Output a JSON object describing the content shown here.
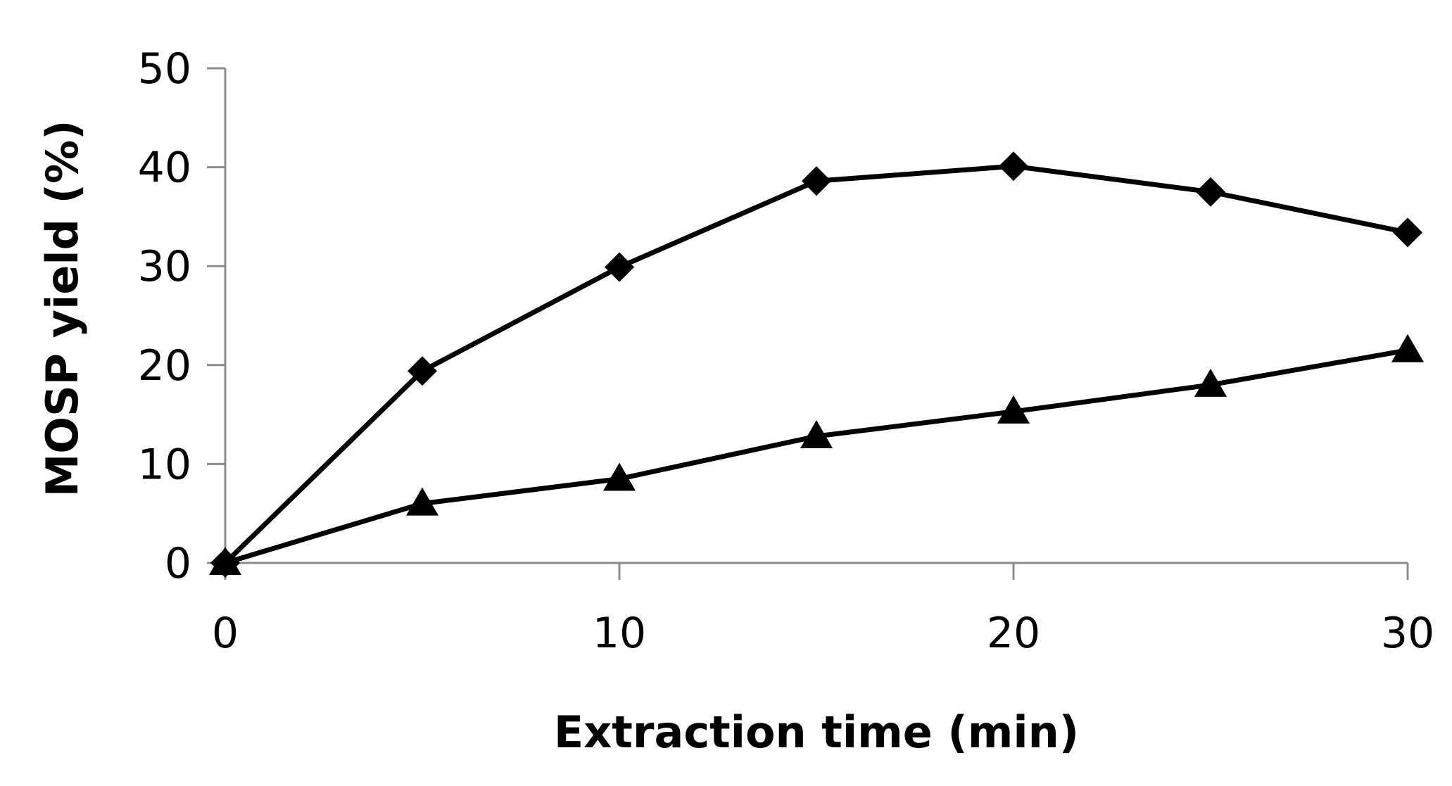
{
  "chart_data": {
    "type": "line",
    "xlabel": "Extraction time (min)",
    "ylabel": "MOSP yield (%)",
    "xlim": [
      0,
      30
    ],
    "ylim": [
      0,
      50
    ],
    "xticks": [
      0,
      10,
      20,
      30
    ],
    "yticks": [
      0,
      10,
      20,
      30,
      40,
      50
    ],
    "grid": false,
    "series": [
      {
        "marker": "diamond",
        "color": "#000000",
        "x": [
          0,
          5,
          10,
          15,
          20,
          25,
          30
        ],
        "y": [
          0,
          19.4,
          29.9,
          38.6,
          40.1,
          37.5,
          33.4
        ]
      },
      {
        "marker": "triangle",
        "color": "#000000",
        "x": [
          0,
          5,
          10,
          15,
          20,
          25,
          30
        ],
        "y": [
          0,
          6.0,
          8.5,
          12.8,
          15.3,
          18.0,
          21.5
        ]
      }
    ]
  }
}
